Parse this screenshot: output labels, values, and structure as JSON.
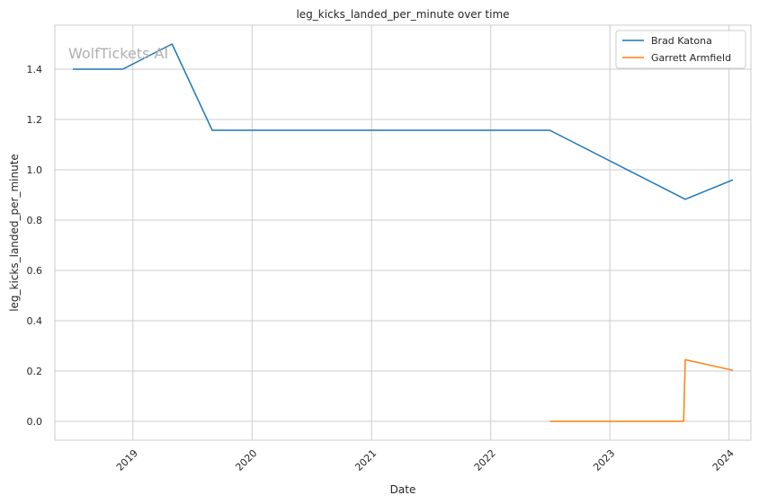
{
  "watermark": "WolfTickets AI",
  "chart_data": {
    "type": "line",
    "title": "leg_kicks_landed_per_minute over time",
    "xlabel": "Date",
    "ylabel": "leg_kicks_landed_per_minute",
    "x_ticks": [
      "2019",
      "2020",
      "2021",
      "2022",
      "2023",
      "2024"
    ],
    "y_ticks": [
      "0.0",
      "0.2",
      "0.4",
      "0.6",
      "0.8",
      "1.0",
      "1.2",
      "1.4"
    ],
    "xlim": [
      "2018-05-07",
      "2024-03-08"
    ],
    "ylim": [
      -0.075,
      1.575
    ],
    "grid": true,
    "legend_position": "top-right",
    "series": [
      {
        "name": "Brad Katona",
        "color": "#1f77b4",
        "points": [
          {
            "x": "2018-07-01",
            "y": 1.4
          },
          {
            "x": "2018-12-01",
            "y": 1.4
          },
          {
            "x": "2019-05-01",
            "y": 1.5
          },
          {
            "x": "2019-09-01",
            "y": 1.157
          },
          {
            "x": "2022-07-01",
            "y": 1.157
          },
          {
            "x": "2023-08-20",
            "y": 0.883
          },
          {
            "x": "2024-01-13",
            "y": 0.96
          }
        ]
      },
      {
        "name": "Garrett Armfield",
        "color": "#ff7f0e",
        "points": [
          {
            "x": "2022-07-01",
            "y": 0.0
          },
          {
            "x": "2023-08-15",
            "y": 0.0
          },
          {
            "x": "2023-08-20",
            "y": 0.245
          },
          {
            "x": "2024-01-13",
            "y": 0.203
          }
        ]
      }
    ]
  }
}
